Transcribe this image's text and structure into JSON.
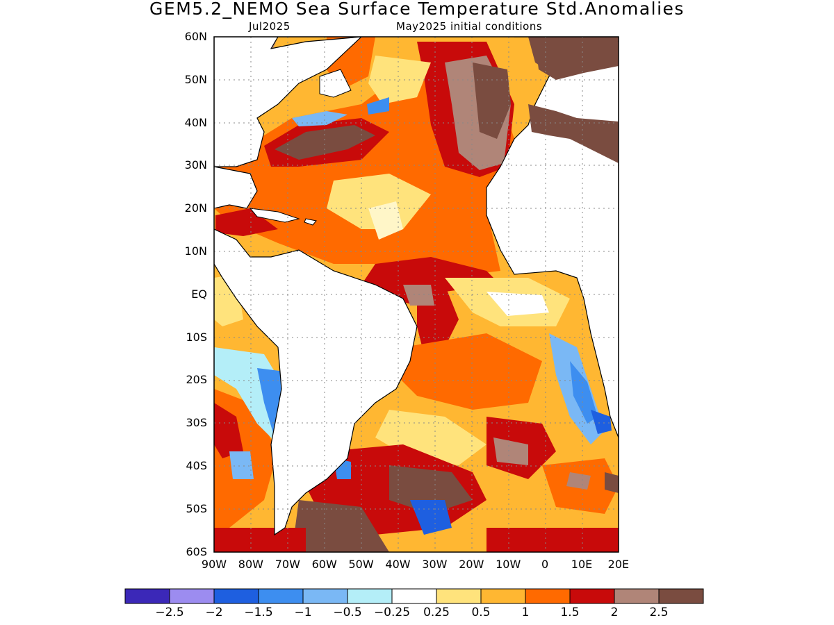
{
  "title": "GEM5.2_NEMO Sea Surface Temperature Std.Anomalies",
  "subtitle_left": "Jul2025",
  "subtitle_right": "May2025 initial conditions",
  "latitude_labels": [
    "60N",
    "50N",
    "40N",
    "30N",
    "20N",
    "10N",
    "EQ",
    "10S",
    "20S",
    "30S",
    "40S",
    "50S",
    "60S"
  ],
  "longitude_labels": [
    "90W",
    "80W",
    "70W",
    "60W",
    "50W",
    "40W",
    "30W",
    "20W",
    "10W",
    "0",
    "10E",
    "20E"
  ],
  "colorbar": {
    "colors": [
      "#3b28b8",
      "#9c8cf0",
      "#1e5fe0",
      "#3d8ef0",
      "#7ab8f5",
      "#b4eef8",
      "#ffffff",
      "#ffe37c",
      "#ffb732",
      "#ff6a00",
      "#c80a0a",
      "#b08578",
      "#7a4c40"
    ],
    "labels": [
      "-2.5",
      "-2",
      "-1.5",
      "-1",
      "-0.5",
      "-0.25",
      "0.25",
      "0.5",
      "1",
      "1.5",
      "2",
      "2.5"
    ]
  }
}
